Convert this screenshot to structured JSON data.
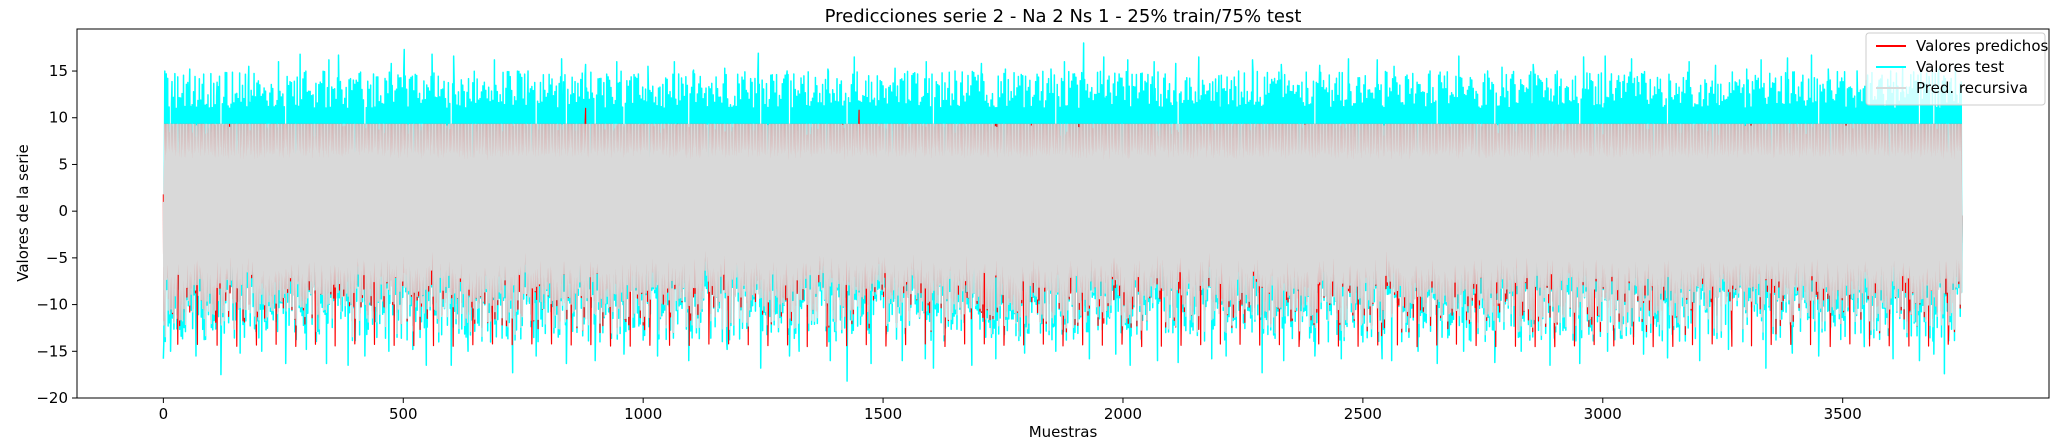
{
  "chart_data": {
    "type": "line",
    "title": "Predicciones serie 2 - Na 2 Ns 1 - 25% train/75% test",
    "xlabel": "Muestras",
    "ylabel": "Valores de la serie",
    "xlim": [
      -180,
      3930
    ],
    "ylim": [
      -20,
      19.5
    ],
    "xticks": [
      0,
      500,
      1000,
      1500,
      2000,
      2500,
      3000,
      3500
    ],
    "yticks": [
      -20,
      -15,
      -10,
      -5,
      0,
      5,
      10,
      15
    ],
    "grid": false,
    "legend_position": "top-right",
    "n_samples": 3750,
    "series": [
      {
        "name": "Valores predichos",
        "color": "#ff0000",
        "summary": {
          "min": -14.5,
          "max": 11.0,
          "typical_low": -14.2,
          "typical_high": 9.3,
          "first": 1.8,
          "last": -0.5
        }
      },
      {
        "name": "Valores test",
        "color": "#00ffff",
        "summary": {
          "min": -18.2,
          "max": 18.0,
          "typical_low": -14.5,
          "typical_high": 13.0,
          "first": 1.5,
          "last": -0.5
        }
      },
      {
        "name": "Pred. recursiva",
        "color": "#d9d9d9",
        "summary": {
          "min": -14.2,
          "max": 9.3,
          "typical_low": -14.2,
          "typical_high": 9.3,
          "first": 1.0,
          "last": -0.5
        }
      }
    ],
    "peaks": {
      "test_high": [
        [
          17,
          11.5
        ],
        [
          55,
          15.2
        ],
        [
          112,
          13.8
        ],
        [
          178,
          15.5
        ],
        [
          240,
          16.0
        ],
        [
          285,
          16.8
        ],
        [
          345,
          16.2
        ],
        [
          365,
          16.7
        ],
        [
          475,
          15.8
        ],
        [
          502,
          17.3
        ],
        [
          560,
          16.8
        ],
        [
          605,
          16.6
        ],
        [
          690,
          16.2
        ],
        [
          760,
          15.0
        ],
        [
          830,
          16.3
        ],
        [
          880,
          15.7
        ],
        [
          945,
          16.0
        ],
        [
          1010,
          15.5
        ],
        [
          1065,
          16.0
        ],
        [
          1105,
          15.1
        ],
        [
          1170,
          15.3
        ],
        [
          1240,
          16.9
        ],
        [
          1300,
          15.0
        ],
        [
          1385,
          15.2
        ],
        [
          1440,
          16.5
        ],
        [
          1470,
          14.5
        ],
        [
          1525,
          15.3
        ],
        [
          1590,
          16.0
        ],
        [
          1650,
          15.0
        ],
        [
          1705,
          15.8
        ],
        [
          1755,
          15.2
        ],
        [
          1795,
          15.5
        ],
        [
          1850,
          15.2
        ],
        [
          1878,
          16.0
        ],
        [
          1918,
          18.0
        ],
        [
          1960,
          16.5
        ],
        [
          2010,
          16.2
        ],
        [
          2065,
          16.0
        ],
        [
          2110,
          15.8
        ],
        [
          2158,
          16.5
        ],
        [
          2200,
          14.5
        ],
        [
          2270,
          16.2
        ],
        [
          2330,
          15.7
        ],
        [
          2410,
          15.6
        ],
        [
          2470,
          16.3
        ],
        [
          2530,
          16.2
        ],
        [
          2565,
          15.5
        ],
        [
          2640,
          15.0
        ],
        [
          2700,
          16.6
        ],
        [
          2760,
          15.0
        ],
        [
          2790,
          15.4
        ],
        [
          2855,
          15.7
        ],
        [
          2905,
          15.0
        ],
        [
          2960,
          16.5
        ],
        [
          3005,
          16.6
        ],
        [
          3060,
          16.3
        ],
        [
          3135,
          15.4
        ],
        [
          3180,
          16.0
        ],
        [
          3235,
          15.6
        ],
        [
          3300,
          15.2
        ],
        [
          3330,
          16.2
        ],
        [
          3385,
          16.4
        ],
        [
          3435,
          16.7
        ],
        [
          3470,
          15.2
        ],
        [
          3530,
          15.0
        ],
        [
          3575,
          13.0
        ],
        [
          3625,
          15.4
        ],
        [
          3680,
          14.4
        ],
        [
          3700,
          15.2
        ],
        [
          3735,
          15.3
        ]
      ],
      "test_low": [
        [
          0,
          -15.8
        ],
        [
          15,
          -15.0
        ],
        [
          68,
          -15.5
        ],
        [
          120,
          -17.5
        ],
        [
          160,
          -15.2
        ],
        [
          205,
          -15.0
        ],
        [
          255,
          -16.3
        ],
        [
          298,
          -14.8
        ],
        [
          340,
          -16.3
        ],
        [
          385,
          -16.5
        ],
        [
          420,
          -15.5
        ],
        [
          470,
          -15.0
        ],
        [
          520,
          -14.8
        ],
        [
          548,
          -16.5
        ],
        [
          600,
          -16.5
        ],
        [
          635,
          -15.0
        ],
        [
          728,
          -17.3
        ],
        [
          777,
          -15.5
        ],
        [
          840,
          -16.3
        ],
        [
          900,
          -16.0
        ],
        [
          960,
          -15.3
        ],
        [
          1030,
          -15.5
        ],
        [
          1095,
          -16.0
        ],
        [
          1175,
          -14.8
        ],
        [
          1245,
          -16.8
        ],
        [
          1305,
          -15.5
        ],
        [
          1325,
          -15.0
        ],
        [
          1390,
          -16.0
        ],
        [
          1425,
          -18.2
        ],
        [
          1475,
          -16.3
        ],
        [
          1540,
          -16.0
        ],
        [
          1588,
          -15.8
        ],
        [
          1605,
          -16.8
        ],
        [
          1685,
          -16.5
        ],
        [
          1735,
          -15.8
        ],
        [
          1795,
          -15.2
        ],
        [
          1860,
          -15.0
        ],
        [
          1930,
          -15.8
        ],
        [
          1985,
          -15.3
        ],
        [
          2015,
          -16.5
        ],
        [
          2072,
          -16.0
        ],
        [
          2115,
          -16.2
        ],
        [
          2185,
          -15.8
        ],
        [
          2215,
          -15.5
        ],
        [
          2290,
          -17.3
        ],
        [
          2335,
          -16.0
        ],
        [
          2400,
          -15.5
        ],
        [
          2455,
          -15.8
        ],
        [
          2540,
          -15.8
        ],
        [
          2560,
          -16.0
        ],
        [
          2615,
          -15.0
        ],
        [
          2655,
          -16.3
        ],
        [
          2710,
          -15.0
        ],
        [
          2775,
          -16.2
        ],
        [
          2830,
          -15.0
        ],
        [
          2890,
          -16.5
        ],
        [
          2952,
          -16.3
        ],
        [
          3010,
          -15.0
        ],
        [
          3085,
          -15.3
        ],
        [
          3135,
          -15.7
        ],
        [
          3202,
          -16.0
        ],
        [
          3262,
          -14.8
        ],
        [
          3340,
          -16.8
        ],
        [
          3395,
          -15.2
        ],
        [
          3450,
          -15.5
        ],
        [
          3545,
          -14.5
        ],
        [
          3605,
          -15.8
        ],
        [
          3660,
          -16.0
        ],
        [
          3690,
          -15.3
        ],
        [
          3712,
          -17.4
        ]
      ],
      "pred_high": [
        [
          880,
          11.0
        ],
        [
          1450,
          10.8
        ],
        [
          1508,
          4.5
        ],
        [
          1518,
          5.0
        ],
        [
          3720,
          4.3
        ]
      ]
    }
  },
  "legend": {
    "items": [
      {
        "label": "Valores predichos",
        "color": "#ff0000"
      },
      {
        "label": "Valores test",
        "color": "#00ffff"
      },
      {
        "label": "Pred. recursiva",
        "color": "#d9d9d9"
      }
    ]
  }
}
